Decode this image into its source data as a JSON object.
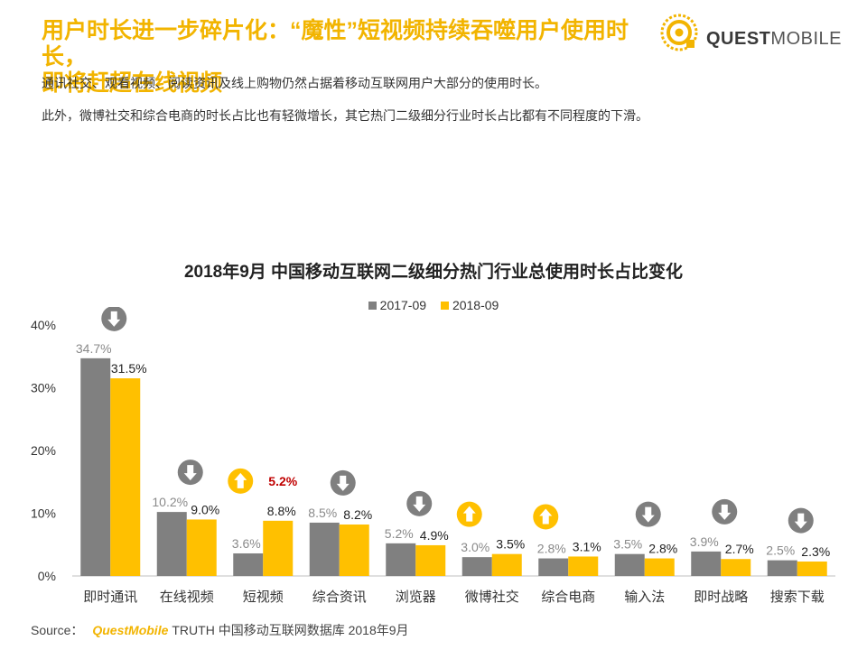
{
  "header": {
    "title_line1": "用户时长进一步碎片化：“魔性”短视频持续吞噬用户使用时长，",
    "title_line2": "即将赶超在线视频",
    "intro1": "通讯社交、观看视频、阅读资讯及线上购物仍然占据着移动互联网用户大部分的使用时长。",
    "intro2": "此外，微博社交和综合电商的时长占比也有轻微增长，其它热门二级细分行业时长占比都有不同程度的下滑。"
  },
  "logo": {
    "text_bold": "QUEST",
    "text_thin": "MOBILE"
  },
  "chart_data": {
    "type": "bar",
    "title": "2018年9月 中国移动互联网二级细分热门行业总使用时长占比变化",
    "categories": [
      "即时通讯",
      "在线视频",
      "短视频",
      "综合资讯",
      "浏览器",
      "微博社交",
      "综合电商",
      "输入法",
      "即时战略",
      "搜索下载"
    ],
    "series": [
      {
        "name": "2017-09",
        "color": "#808080",
        "values": [
          34.7,
          10.2,
          3.6,
          8.5,
          5.2,
          3.0,
          2.8,
          3.5,
          3.9,
          2.5
        ]
      },
      {
        "name": "2018-09",
        "color": "#ffc000",
        "values": [
          31.5,
          9.0,
          8.8,
          8.2,
          4.9,
          3.5,
          3.1,
          2.8,
          2.7,
          2.3
        ]
      }
    ],
    "labels_2017": [
      "34.7%",
      "10.2%",
      "3.6%",
      "8.5%",
      "5.2%",
      "3.0%",
      "2.8%",
      "3.5%",
      "3.9%",
      "2.5%"
    ],
    "labels_2018": [
      "31.5%",
      "9.0%",
      "8.8%",
      "8.2%",
      "4.9%",
      "3.5%",
      "3.1%",
      "2.8%",
      "2.7%",
      "2.3%"
    ],
    "trend": [
      "down",
      "down",
      "up",
      "down",
      "down",
      "up",
      "up",
      "down",
      "down",
      "down"
    ],
    "annotation": {
      "category": "短视频",
      "text": "5.2%"
    },
    "yticks": [
      "0%",
      "10%",
      "20%",
      "30%",
      "40%"
    ],
    "ylim": [
      0,
      40
    ],
    "grid": false,
    "legend_position": "top-center",
    "colors": {
      "down_icon": "#7f7f7f",
      "up_icon": "#ffc000",
      "annotation": "#c00000"
    }
  },
  "source": {
    "label": "Source：",
    "brand": "QuestMobile",
    "text": "TRUTH 中国移动互联网数据库 2018年9月"
  }
}
